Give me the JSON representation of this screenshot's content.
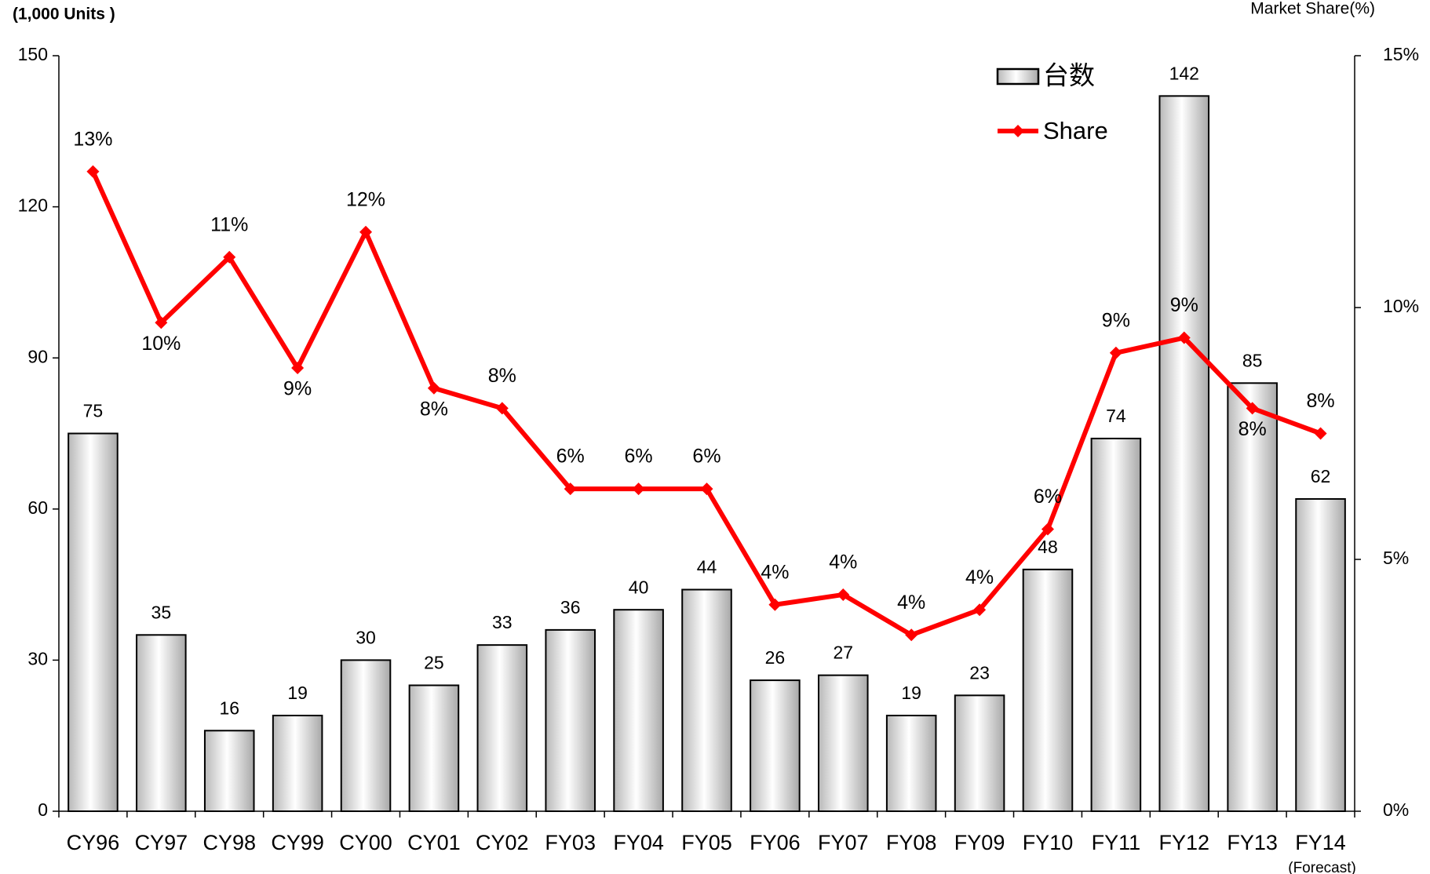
{
  "chart_data": {
    "type": "bar",
    "y_label": "(1,000 Units )",
    "y2_label": "Market Share(%)",
    "categories": [
      "CY96",
      "CY97",
      "CY98",
      "CY99",
      "CY00",
      "CY01",
      "CY02",
      "FY03",
      "FY04",
      "FY05",
      "FY06",
      "FY07",
      "FY08",
      "FY09",
      "FY10",
      "FY11",
      "FY12",
      "FY13",
      "FY14"
    ],
    "annotations": [
      "(Forecast)"
    ],
    "series": [
      {
        "name": "台数",
        "type": "bar",
        "color": "#d9d9d9",
        "values": [
          75,
          35,
          16,
          19,
          30,
          25,
          33,
          36,
          40,
          44,
          26,
          27,
          19,
          23,
          48,
          74,
          142,
          85,
          62
        ]
      },
      {
        "name": "Share",
        "type": "line",
        "axis": "y2",
        "color": "#ff0000",
        "values": [
          12.7,
          9.7,
          11.0,
          8.8,
          11.5,
          8.4,
          8.0,
          6.4,
          6.4,
          6.4,
          4.1,
          4.3,
          3.5,
          4.0,
          5.6,
          9.1,
          9.4,
          8.0,
          7.5
        ],
        "value_labels": [
          "13%",
          "10%",
          "11%",
          "9%",
          "12%",
          "8%",
          "8%",
          "6%",
          "6%",
          "6%",
          "4%",
          "4%",
          "4%",
          "4%",
          "6%",
          "9%",
          "9%",
          "8%",
          "8%"
        ]
      }
    ],
    "ylim": [
      0,
      150
    ],
    "yticks": [
      0,
      30,
      60,
      90,
      120,
      150
    ],
    "y2lim": [
      0,
      15
    ],
    "y2ticks": [
      {
        "value": 0,
        "label": "0%"
      },
      {
        "value": 5,
        "label": "5%"
      },
      {
        "value": 10,
        "label": "10%"
      },
      {
        "value": 15,
        "label": "15%"
      }
    ]
  }
}
